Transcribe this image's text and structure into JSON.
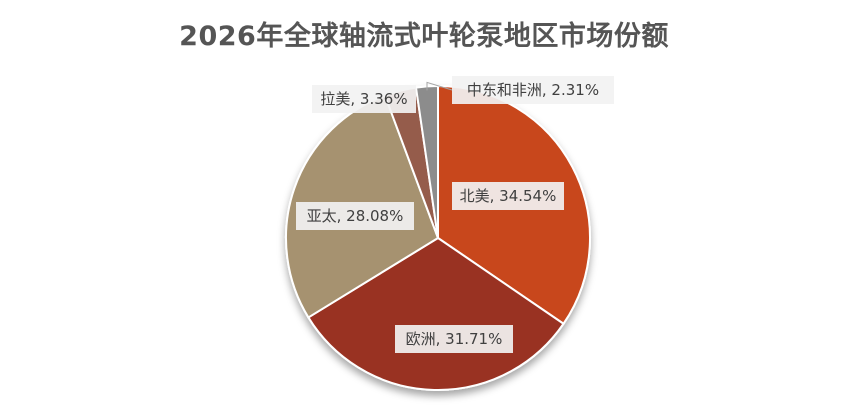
{
  "chart_data": {
    "type": "pie",
    "title": "2026年全球轴流式叶轮泵地区市场份额",
    "start_angle_deg": 0,
    "direction": "clockwise",
    "slices": [
      {
        "label": "北美",
        "value": 34.54,
        "display": "北美, 34.54%",
        "color": "#c8461c"
      },
      {
        "label": "欧洲",
        "value": 31.71,
        "display": "欧洲, 31.71%",
        "color": "#993222"
      },
      {
        "label": "亚太",
        "value": 28.08,
        "display": "亚太, 28.08%",
        "color": "#a69270"
      },
      {
        "label": "拉美",
        "value": 3.36,
        "display": "拉美, 3.36%",
        "color": "#955c4b"
      },
      {
        "label": "中东和非洲",
        "value": 2.31,
        "display": "中东和非洲, 2.31%",
        "color": "#8c8c8c"
      }
    ]
  }
}
